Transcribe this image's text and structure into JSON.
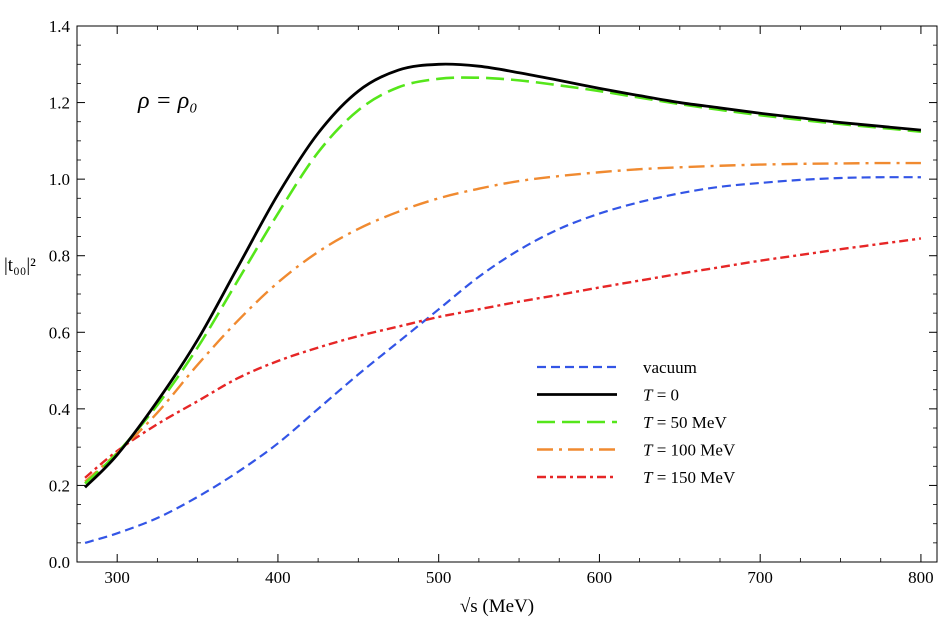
{
  "chart_data": {
    "type": "line",
    "title": "",
    "annotation": "ρ = ρ₀",
    "xlabel": "√s (MeV)",
    "ylabel": "|t₀₀|²",
    "xlim": [
      275,
      810
    ],
    "ylim": [
      0,
      1.4
    ],
    "xticks": [
      300,
      400,
      500,
      600,
      700,
      800
    ],
    "xtick_labels": [
      "300",
      "400",
      "500",
      "600",
      "700",
      "800"
    ],
    "yticks": [
      0.0,
      0.2,
      0.4,
      0.6,
      0.8,
      1.0,
      1.2,
      1.4
    ],
    "ytick_labels": [
      "0.0",
      "0.2",
      "0.4",
      "0.6",
      "0.8",
      "1.0",
      "1.2",
      "1.4"
    ],
    "legend_position": "center-right",
    "grid": false,
    "series": [
      {
        "name": "vacuum",
        "label_parts": [
          "vacuum"
        ],
        "color": "#3355e6",
        "dash": "9,5",
        "width": 2.2,
        "x": [
          280,
          300,
          325,
          350,
          375,
          400,
          425,
          450,
          475,
          500,
          525,
          550,
          575,
          600,
          625,
          650,
          675,
          700,
          725,
          750,
          775,
          800
        ],
        "y": [
          0.05,
          0.075,
          0.115,
          0.17,
          0.235,
          0.31,
          0.4,
          0.49,
          0.575,
          0.66,
          0.745,
          0.815,
          0.87,
          0.91,
          0.94,
          0.963,
          0.98,
          0.99,
          0.998,
          1.003,
          1.005,
          1.005
        ]
      },
      {
        "name": "T = 0",
        "label_parts": [
          "T",
          " = 0"
        ],
        "color": "#000000",
        "dash": "",
        "width": 2.8,
        "x": [
          280,
          300,
          325,
          350,
          375,
          400,
          425,
          450,
          475,
          500,
          525,
          550,
          575,
          600,
          625,
          650,
          675,
          700,
          725,
          750,
          775,
          800
        ],
        "y": [
          0.195,
          0.28,
          0.42,
          0.58,
          0.77,
          0.96,
          1.12,
          1.23,
          1.285,
          1.3,
          1.295,
          1.278,
          1.258,
          1.237,
          1.218,
          1.2,
          1.186,
          1.172,
          1.16,
          1.148,
          1.138,
          1.128
        ]
      },
      {
        "name": "T = 50 MeV",
        "label_parts": [
          "T",
          " = 50 MeV"
        ],
        "color": "#55e61a",
        "dash": "18,7",
        "width": 2.6,
        "x": [
          280,
          300,
          325,
          350,
          375,
          400,
          425,
          450,
          475,
          500,
          525,
          550,
          575,
          600,
          625,
          650,
          675,
          700,
          725,
          750,
          775,
          800
        ],
        "y": [
          0.205,
          0.285,
          0.41,
          0.56,
          0.735,
          0.91,
          1.07,
          1.18,
          1.24,
          1.262,
          1.265,
          1.258,
          1.245,
          1.23,
          1.213,
          1.196,
          1.181,
          1.167,
          1.155,
          1.144,
          1.134,
          1.124
        ]
      },
      {
        "name": "T = 100 MeV",
        "label_parts": [
          "T",
          " = 100 MeV"
        ],
        "color": "#f08a30",
        "dash": "16,6,3,6",
        "width": 2.4,
        "x": [
          280,
          300,
          325,
          350,
          375,
          400,
          425,
          450,
          475,
          500,
          525,
          550,
          575,
          600,
          625,
          650,
          675,
          700,
          725,
          750,
          775,
          800
        ],
        "y": [
          0.21,
          0.285,
          0.39,
          0.515,
          0.63,
          0.73,
          0.81,
          0.87,
          0.915,
          0.95,
          0.975,
          0.995,
          1.008,
          1.018,
          1.026,
          1.031,
          1.035,
          1.038,
          1.04,
          1.041,
          1.042,
          1.042
        ]
      },
      {
        "name": "T = 150 MeV",
        "label_parts": [
          "T",
          " = 150 MeV"
        ],
        "color": "#e62626",
        "dash": "9,4,3,4",
        "width": 2.4,
        "x": [
          280,
          300,
          325,
          350,
          375,
          400,
          425,
          450,
          475,
          500,
          525,
          550,
          575,
          600,
          625,
          650,
          675,
          700,
          725,
          750,
          775,
          800
        ],
        "y": [
          0.22,
          0.29,
          0.36,
          0.42,
          0.48,
          0.525,
          0.56,
          0.59,
          0.615,
          0.64,
          0.66,
          0.68,
          0.698,
          0.717,
          0.735,
          0.753,
          0.77,
          0.787,
          0.802,
          0.817,
          0.831,
          0.845
        ]
      }
    ]
  }
}
